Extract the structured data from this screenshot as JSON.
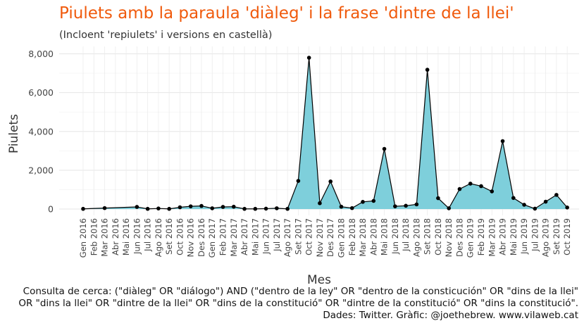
{
  "title": "Piulets amb la paraula 'diàleg' i la frase 'dintre de la llei'",
  "subtitle": "(Incloent 'repiulets' i versions en castellà)",
  "caption_lines": [
    "Consulta de cerca: (\"diàleg\" OR \"diálogo\") AND (\"dentro de la ley\" OR \"dentro de la consticución\" OR \"dins de la llei\"",
    "OR \"dins la llei\" OR \"dintre de la llei\" OR \"dins de la constitució\" OR \"dintre de la constitució\" OR \"dins la constitució\".",
    "Dades: Twitter. Gràfic: @joethebrew. www.vilaweb.cat"
  ],
  "colors": {
    "title": "#f05a0c",
    "area_fill": "#7ecfdb",
    "line": "#000000",
    "grid": "#e5e5e5"
  },
  "chart_data": {
    "type": "area",
    "title": "Piulets amb la paraula 'diàleg' i la frase 'dintre de la llei'",
    "subtitle": "(Incloent 'repiulets' i versions en castellà)",
    "xlabel": "Mes",
    "ylabel": "Piulets",
    "ylim": [
      0,
      8000
    ],
    "y_ticks": [
      0,
      2000,
      4000,
      6000,
      8000
    ],
    "y_tick_labels": [
      "0",
      "2,000",
      "4,000",
      "6,000",
      "8,000"
    ],
    "grid": true,
    "categories": [
      "Gen 2016",
      "Feb 2016",
      "Mar 2016",
      "Abr 2016",
      "Mai 2016",
      "Jun 2016",
      "Jul 2016",
      "Ago 2016",
      "Set 2016",
      "Oct 2016",
      "Nov 2016",
      "Des 2016",
      "Gen 2017",
      "Feb 2017",
      "Mar 2017",
      "Abr 2017",
      "Mai 2017",
      "Jun 2017",
      "Jul 2017",
      "Ago 2017",
      "Set 2017",
      "Oct 2017",
      "Nov 2017",
      "Des 2017",
      "Gen 2018",
      "Feb 2018",
      "Mar 2018",
      "Abr 2018",
      "Mai 2018",
      "Jun 2018",
      "Jul 2018",
      "Ago 2018",
      "Set 2018",
      "Oct 2018",
      "Nov 2018",
      "Des 2018",
      "Gen 2019",
      "Feb 2019",
      "Mar 2019",
      "Abr 2019",
      "Mai 2019",
      "Jun 2019",
      "Jul 2019",
      "Ago 2019",
      "Set 2019",
      "Oct 2019"
    ],
    "points": [
      {
        "month": "Gen 2016",
        "value": 10
      },
      {
        "month": "Mar 2016",
        "value": 50
      },
      {
        "month": "Jun 2016",
        "value": 110
      },
      {
        "month": "Jul 2016",
        "value": 10
      },
      {
        "month": "Ago 2016",
        "value": 30
      },
      {
        "month": "Set 2016",
        "value": 10
      },
      {
        "month": "Oct 2016",
        "value": 90
      },
      {
        "month": "Nov 2016",
        "value": 140
      },
      {
        "month": "Des 2016",
        "value": 160
      },
      {
        "month": "Gen 2017",
        "value": 40
      },
      {
        "month": "Feb 2017",
        "value": 110
      },
      {
        "month": "Mar 2017",
        "value": 120
      },
      {
        "month": "Abr 2017",
        "value": 10
      },
      {
        "month": "Mai 2017",
        "value": 10
      },
      {
        "month": "Jun 2017",
        "value": 20
      },
      {
        "month": "Jul 2017",
        "value": 40
      },
      {
        "month": "Ago 2017",
        "value": 10
      },
      {
        "month": "Set 2017",
        "value": 1450
      },
      {
        "month": "Oct 2017",
        "value": 7800
      },
      {
        "month": "Nov 2017",
        "value": 300
      },
      {
        "month": "Des 2017",
        "value": 1420
      },
      {
        "month": "Gen 2018",
        "value": 120
      },
      {
        "month": "Feb 2018",
        "value": 50
      },
      {
        "month": "Mar 2018",
        "value": 370
      },
      {
        "month": "Abr 2018",
        "value": 420
      },
      {
        "month": "Mai 2018",
        "value": 3100
      },
      {
        "month": "Jun 2018",
        "value": 140
      },
      {
        "month": "Jul 2018",
        "value": 170
      },
      {
        "month": "Ago 2018",
        "value": 240
      },
      {
        "month": "Set 2018",
        "value": 7180
      },
      {
        "month": "Oct 2018",
        "value": 560
      },
      {
        "month": "Nov 2018",
        "value": 40
      },
      {
        "month": "Des 2018",
        "value": 1030
      },
      {
        "month": "Gen 2019",
        "value": 1310
      },
      {
        "month": "Feb 2019",
        "value": 1180
      },
      {
        "month": "Mar 2019",
        "value": 910
      },
      {
        "month": "Abr 2019",
        "value": 3500
      },
      {
        "month": "Mai 2019",
        "value": 570
      },
      {
        "month": "Jun 2019",
        "value": 220
      },
      {
        "month": "Jul 2019",
        "value": 20
      },
      {
        "month": "Ago 2019",
        "value": 380
      },
      {
        "month": "Set 2019",
        "value": 730
      },
      {
        "month": "Oct 2019",
        "value": 80
      }
    ]
  }
}
